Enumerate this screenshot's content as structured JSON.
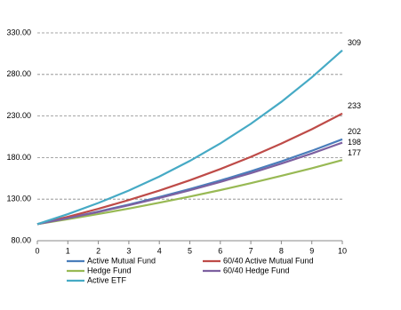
{
  "chart_data": {
    "type": "line",
    "x": [
      0,
      1,
      2,
      3,
      4,
      5,
      6,
      7,
      8,
      9,
      10
    ],
    "series": [
      {
        "name": "Active Mutual Fund",
        "color": "#4a7ebb",
        "values": [
          100,
          107.3,
          115.1,
          123.5,
          132.5,
          142.1,
          152.4,
          163.5,
          175.4,
          188.2,
          202
        ]
      },
      {
        "name": "60/40 Active Mutual Fund",
        "color": "#be4b48",
        "values": [
          100,
          108.8,
          118.4,
          128.9,
          140.3,
          152.7,
          166.2,
          180.8,
          196.8,
          214.1,
          233
        ]
      },
      {
        "name": "Hedge Fund",
        "color": "#98b954",
        "values": [
          100,
          105.9,
          112.1,
          118.7,
          125.7,
          133.1,
          140.9,
          149.2,
          158,
          167.2,
          177
        ]
      },
      {
        "name": "60/40 Hedge Fund",
        "color": "#7d60a0",
        "values": [
          100,
          107.1,
          114.6,
          122.7,
          131.4,
          140.7,
          150.7,
          161.3,
          172.7,
          184.9,
          198
        ]
      },
      {
        "name": "Active ETF",
        "color": "#46aac5",
        "values": [
          100,
          112,
          125.4,
          140.4,
          157.2,
          176,
          197,
          220.6,
          247,
          276.5,
          309
        ]
      }
    ],
    "xlim": [
      0,
      10
    ],
    "xticks": [
      0,
      1,
      2,
      3,
      4,
      5,
      6,
      7,
      8,
      9,
      10
    ],
    "ylim": [
      80,
      330
    ],
    "yticks": [
      {
        "value": 80,
        "label": "80.00"
      },
      {
        "value": 130,
        "label": "130.00"
      },
      {
        "value": 180,
        "label": "180.00"
      },
      {
        "value": 230,
        "label": "230.00"
      },
      {
        "value": 280,
        "label": "280.00"
      },
      {
        "value": 330,
        "label": "330.00"
      }
    ],
    "grid": true,
    "legend": "bottom"
  }
}
